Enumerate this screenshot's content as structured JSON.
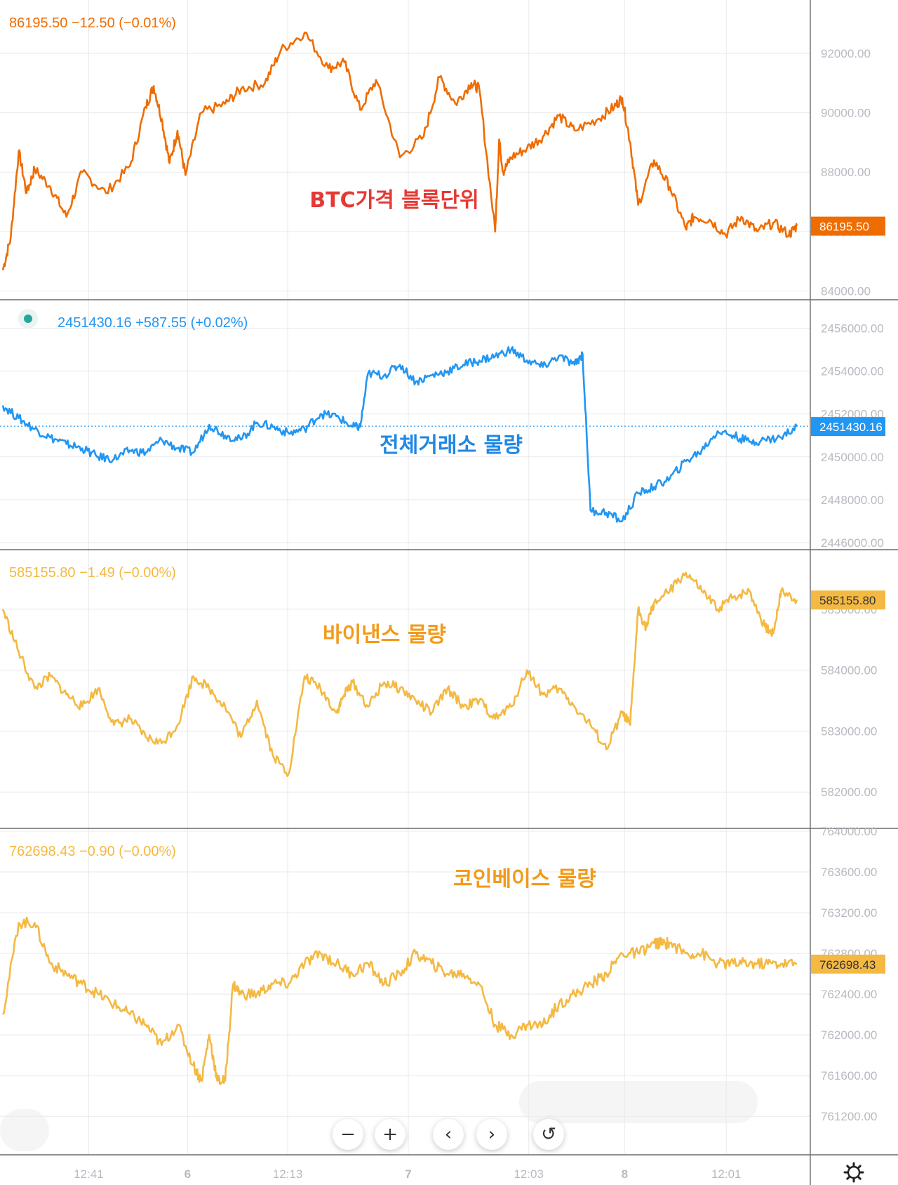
{
  "colors": {
    "btc": "#ef6c00",
    "total": "#2196f3",
    "binance": "#f4b942",
    "coinbase": "#f4b942",
    "btc_title": "#e53935",
    "total_title": "#1e88e5",
    "binance_title": "#f29a1a",
    "coinbase_title": "#f29a1a",
    "grid": "#e9e9ee",
    "axis_text": "#b9b9c2",
    "separator": "#6b6b6b",
    "dot": "#26a69a"
  },
  "controls": {
    "zoom_out": "−",
    "zoom_in": "+",
    "scroll_left": "‹",
    "scroll_right": "›",
    "reset": "↺",
    "settings_icon": "gear-icon"
  },
  "chart_data": [
    {
      "type": "line",
      "title": "BTC가격 블록단위",
      "header": "86195.50  −12.50 (−0.01%)",
      "last_label": "86195.50",
      "last_value": 86195.5,
      "yticks": [
        84000,
        86000,
        88000,
        90000,
        92000
      ],
      "ytick_labels": [
        "84000.00",
        "86000.00",
        "88000.00",
        "90000.00",
        "92000.00"
      ],
      "ylim": [
        83800,
        93700
      ],
      "series": [
        {
          "x": [
            0,
            0.01,
            0.02,
            0.03,
            0.04,
            0.06,
            0.08,
            0.1,
            0.13,
            0.16,
            0.18,
            0.19,
            0.2,
            0.21,
            0.22,
            0.23,
            0.25,
            0.28,
            0.3,
            0.33,
            0.35,
            0.38,
            0.41,
            0.43,
            0.45,
            0.47,
            0.5,
            0.53,
            0.55,
            0.57,
            0.59,
            0.6,
            0.62,
            0.625,
            0.63,
            0.64,
            0.66,
            0.68,
            0.7,
            0.72,
            0.75,
            0.77,
            0.78,
            0.79,
            0.8,
            0.82,
            0.84,
            0.86,
            0.87,
            0.89,
            0.91,
            0.93,
            0.95,
            0.97,
            0.99,
            1.0
          ],
          "values": [
            84700,
            85800,
            88700,
            87300,
            88100,
            87500,
            86500,
            88000,
            87300,
            88200,
            90200,
            90900,
            89800,
            88300,
            89400,
            87900,
            90000,
            90300,
            90800,
            91000,
            92100,
            92700,
            91500,
            91700,
            90100,
            91100,
            88500,
            89200,
            91200,
            90300,
            91000,
            90800,
            86000,
            89100,
            88000,
            88500,
            88800,
            89200,
            89900,
            89400,
            89800,
            90200,
            90500,
            89000,
            86900,
            88400,
            87500,
            86100,
            86500,
            86400,
            85900,
            86500,
            86000,
            86300,
            85900,
            86195.5
          ]
        }
      ]
    },
    {
      "type": "line",
      "title": "전체거래소 물량",
      "header": "2451430.16  +587.55 (+0.02%)",
      "last_label": "2451430.16",
      "last_value": 2451430.16,
      "yticks": [
        2446000,
        2448000,
        2450000,
        2452000,
        2454000,
        2456000
      ],
      "ytick_labels": [
        "2446000.00",
        "2448000.00",
        "2450000.00",
        "2452000.00",
        "2454000.00",
        "2456000.00"
      ],
      "ylim": [
        2445800,
        2457200
      ],
      "series": [
        {
          "x": [
            0,
            0.02,
            0.04,
            0.06,
            0.08,
            0.1,
            0.12,
            0.14,
            0.16,
            0.18,
            0.2,
            0.22,
            0.24,
            0.26,
            0.28,
            0.3,
            0.32,
            0.34,
            0.36,
            0.38,
            0.4,
            0.42,
            0.44,
            0.45,
            0.46,
            0.48,
            0.5,
            0.52,
            0.54,
            0.56,
            0.58,
            0.6,
            0.62,
            0.64,
            0.66,
            0.68,
            0.7,
            0.72,
            0.73,
            0.74,
            0.76,
            0.78,
            0.8,
            0.82,
            0.84,
            0.86,
            0.88,
            0.9,
            0.92,
            0.94,
            0.96,
            0.98,
            1.0
          ],
          "values": [
            2452400,
            2451800,
            2451300,
            2450900,
            2450600,
            2450400,
            2450000,
            2449900,
            2450300,
            2450200,
            2450800,
            2450400,
            2450200,
            2451500,
            2451000,
            2450800,
            2451600,
            2451400,
            2451100,
            2451300,
            2452000,
            2451900,
            2451400,
            2451400,
            2453900,
            2453800,
            2454300,
            2453500,
            2453800,
            2454000,
            2454300,
            2454500,
            2454700,
            2455000,
            2454500,
            2454200,
            2454700,
            2454300,
            2454800,
            2447500,
            2447400,
            2447000,
            2448300,
            2448600,
            2449000,
            2449800,
            2450300,
            2451200,
            2451000,
            2450700,
            2450800,
            2450900,
            2451430.16
          ]
        }
      ]
    },
    {
      "type": "line",
      "title": "바이낸스 물량",
      "header": "585155.80  −1.49 (−0.00%)",
      "last_label": "585155.80",
      "last_value": 585155.8,
      "yticks": [
        582000,
        583000,
        584000,
        585000
      ],
      "ytick_labels": [
        "582000.00",
        "583000.00",
        "584000.00",
        "585000.00"
      ],
      "ylim": [
        581450,
        585930
      ],
      "series": [
        {
          "x": [
            0,
            0.02,
            0.04,
            0.06,
            0.08,
            0.1,
            0.12,
            0.14,
            0.16,
            0.18,
            0.2,
            0.22,
            0.24,
            0.26,
            0.28,
            0.3,
            0.32,
            0.34,
            0.36,
            0.38,
            0.4,
            0.42,
            0.43,
            0.44,
            0.46,
            0.48,
            0.5,
            0.52,
            0.54,
            0.56,
            0.58,
            0.6,
            0.62,
            0.64,
            0.66,
            0.68,
            0.7,
            0.72,
            0.74,
            0.76,
            0.78,
            0.79,
            0.8,
            0.81,
            0.82,
            0.84,
            0.86,
            0.88,
            0.9,
            0.92,
            0.94,
            0.96,
            0.97,
            0.98,
            1.0
          ],
          "values": [
            585000,
            584300,
            583700,
            583900,
            583600,
            583400,
            583700,
            583100,
            583200,
            582900,
            582800,
            583100,
            583900,
            583700,
            583400,
            582900,
            583500,
            582600,
            582300,
            583900,
            583700,
            583300,
            583600,
            583800,
            583400,
            583800,
            583700,
            583500,
            583300,
            583700,
            583400,
            583500,
            583200,
            583400,
            584000,
            583600,
            583700,
            583400,
            583100,
            582700,
            583300,
            583100,
            585000,
            584700,
            585100,
            585300,
            585600,
            585300,
            585000,
            585200,
            585300,
            584700,
            584600,
            585300,
            585155.8
          ]
        }
      ]
    },
    {
      "type": "line",
      "title": "코인베이스 물량",
      "header": "762698.43  −0.90 (−0.00%)",
      "last_label": "762698.43",
      "last_value": 762698.43,
      "yticks": [
        761200,
        761600,
        762000,
        762400,
        762800,
        763200,
        763600,
        764000
      ],
      "ytick_labels": [
        "761200.00",
        "761600.00",
        "762000.00",
        "762400.00",
        "762800.00",
        "763200.00",
        "763600.00",
        "764000.00"
      ],
      "ylim": [
        760850,
        764000
      ],
      "series": [
        {
          "x": [
            0,
            0.02,
            0.04,
            0.06,
            0.08,
            0.1,
            0.12,
            0.14,
            0.16,
            0.18,
            0.2,
            0.22,
            0.24,
            0.25,
            0.26,
            0.27,
            0.28,
            0.29,
            0.3,
            0.32,
            0.34,
            0.36,
            0.38,
            0.4,
            0.42,
            0.44,
            0.46,
            0.48,
            0.5,
            0.52,
            0.54,
            0.56,
            0.58,
            0.6,
            0.62,
            0.64,
            0.66,
            0.68,
            0.7,
            0.72,
            0.74,
            0.76,
            0.78,
            0.8,
            0.82,
            0.83,
            0.84,
            0.86,
            0.88,
            0.9,
            0.92,
            0.94,
            0.96,
            0.98,
            1.0
          ],
          "values": [
            762200,
            763100,
            763100,
            762700,
            762600,
            762500,
            762400,
            762300,
            762200,
            762100,
            761900,
            762100,
            761700,
            761550,
            762000,
            761550,
            761550,
            762500,
            762400,
            762400,
            762500,
            762500,
            762700,
            762800,
            762700,
            762600,
            762700,
            762500,
            762600,
            762800,
            762700,
            762600,
            762600,
            762500,
            762100,
            762000,
            762100,
            762100,
            762300,
            762400,
            762500,
            762600,
            762800,
            762800,
            762900,
            762900,
            762900,
            762800,
            762800,
            762700,
            762700,
            762700,
            762700,
            762700,
            762698.43
          ]
        }
      ]
    }
  ],
  "xaxis": {
    "ticks": [
      {
        "label": "12:41",
        "x": 0.0958
      },
      {
        "label": "6",
        "x": 0.2203
      },
      {
        "label": "12:13",
        "x": 0.3463
      },
      {
        "label": "7",
        "x": 0.4982
      },
      {
        "label": "12:03",
        "x": 0.6499
      },
      {
        "label": "8",
        "x": 0.7706
      },
      {
        "label": "12:01",
        "x": 0.8986
      }
    ]
  }
}
